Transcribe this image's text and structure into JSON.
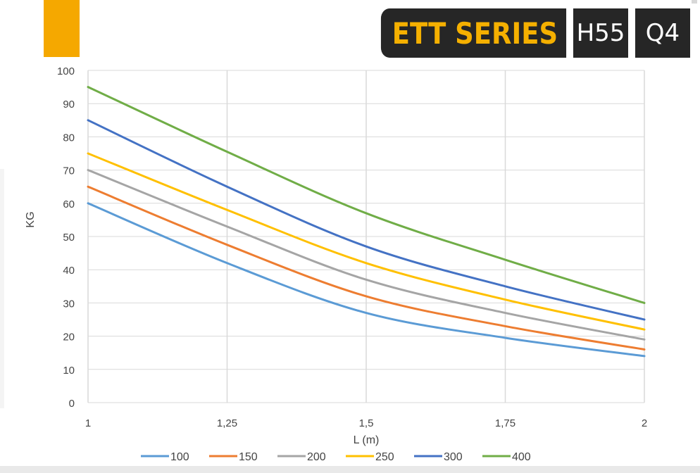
{
  "header": {
    "series_label": "ETT SERIES",
    "tag_h": "H55",
    "tag_q": "Q4"
  },
  "colors": {
    "accent": "#f5a800",
    "badge_bg": "#262626",
    "badge_text": "#f5b000"
  },
  "chart_data": {
    "type": "line",
    "xlabel": "L (m)",
    "ylabel": "KG",
    "x": [
      1,
      1.25,
      1.5,
      1.75,
      2
    ],
    "x_tick_labels": [
      "1",
      "1,25",
      "1,5",
      "1,75",
      "2"
    ],
    "ylim": [
      0,
      100
    ],
    "y_ticks": [
      0,
      10,
      20,
      30,
      40,
      50,
      60,
      70,
      80,
      90,
      100
    ],
    "grid": true,
    "legend_position": "bottom",
    "series": [
      {
        "name": "100",
        "color": "#5b9bd5",
        "values": [
          60,
          42,
          27,
          19.5,
          14
        ]
      },
      {
        "name": "150",
        "color": "#ed7d31",
        "values": [
          65,
          47.5,
          32,
          23,
          16
        ]
      },
      {
        "name": "200",
        "color": "#a5a5a5",
        "values": [
          70,
          53,
          37,
          27,
          19
        ]
      },
      {
        "name": "250",
        "color": "#ffc000",
        "values": [
          75,
          58,
          42,
          31,
          22
        ]
      },
      {
        "name": "300",
        "color": "#4472c4",
        "values": [
          85,
          65,
          47,
          35,
          25
        ]
      },
      {
        "name": "400",
        "color": "#70ad47",
        "values": [
          95,
          75.5,
          57,
          43,
          30
        ]
      }
    ]
  }
}
